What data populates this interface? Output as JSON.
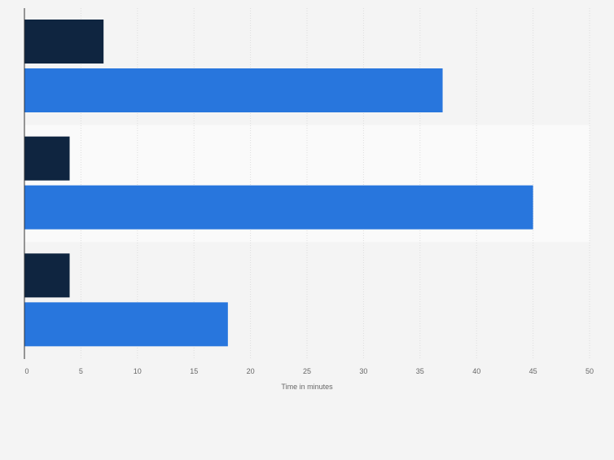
{
  "chart_data": {
    "type": "bar",
    "orientation": "horizontal",
    "categories": [
      "",
      "",
      ""
    ],
    "series": [
      {
        "color": "#0f2540",
        "values": [
          7,
          4,
          4
        ]
      },
      {
        "color": "#2876dd",
        "values": [
          37,
          45,
          18
        ]
      }
    ],
    "xlabel": "Time in minutes",
    "xlim": [
      0,
      50
    ],
    "xticks": [
      0,
      5,
      10,
      15,
      20,
      25,
      30,
      35,
      40,
      45,
      50
    ],
    "grid": true
  }
}
